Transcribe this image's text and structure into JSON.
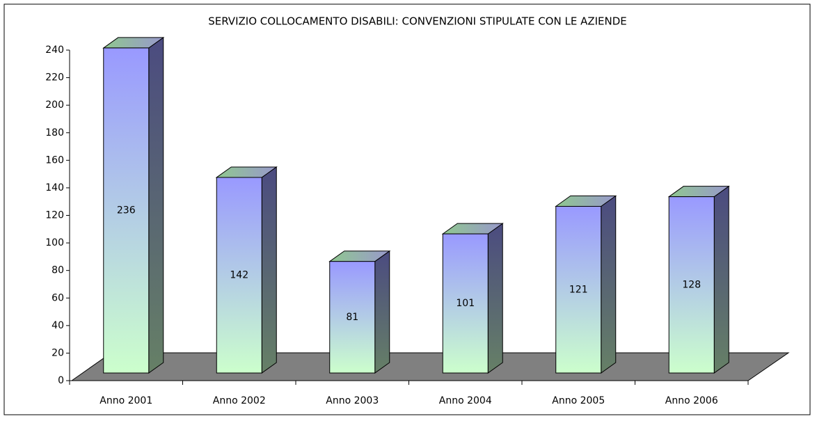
{
  "chart_data": {
    "type": "bar3d",
    "title": "SERVIZIO COLLOCAMENTO DISABILI: CONVENZIONI STIPULATE CON LE AZIENDE",
    "categories": [
      "Anno 2001",
      "Anno 2002",
      "Anno 2003",
      "Anno 2004",
      "Anno 2005",
      "Anno 2006"
    ],
    "values": [
      236,
      142,
      81,
      101,
      121,
      128
    ],
    "ylim": [
      0,
      240
    ],
    "yticks": [
      0,
      20,
      40,
      60,
      80,
      100,
      120,
      140,
      160,
      180,
      200,
      220,
      240
    ],
    "color": "#9999ff",
    "grid": false
  }
}
